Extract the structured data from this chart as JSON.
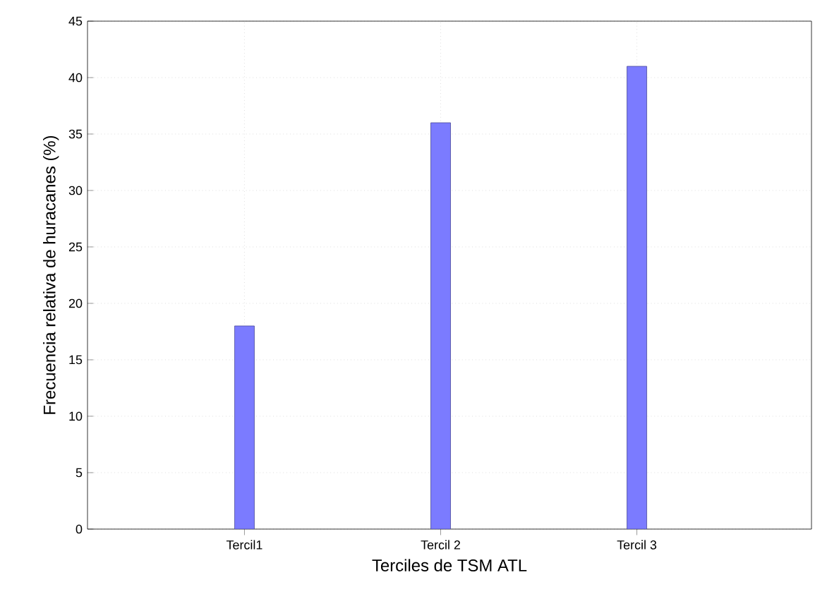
{
  "chart_data": {
    "type": "bar",
    "xlabel": "Terciles de TSM ATL",
    "ylabel": "Frecuencia relativa de huracanes (%)",
    "categories": [
      "Tercil1",
      "Tercil 2",
      "Tercil 3"
    ],
    "values": [
      18,
      36,
      41
    ],
    "color": "#7b7bff",
    "ylim": [
      0,
      45
    ],
    "yticks": [
      0,
      5,
      10,
      15,
      20,
      25,
      30,
      35,
      40,
      45
    ],
    "grid": true
  }
}
